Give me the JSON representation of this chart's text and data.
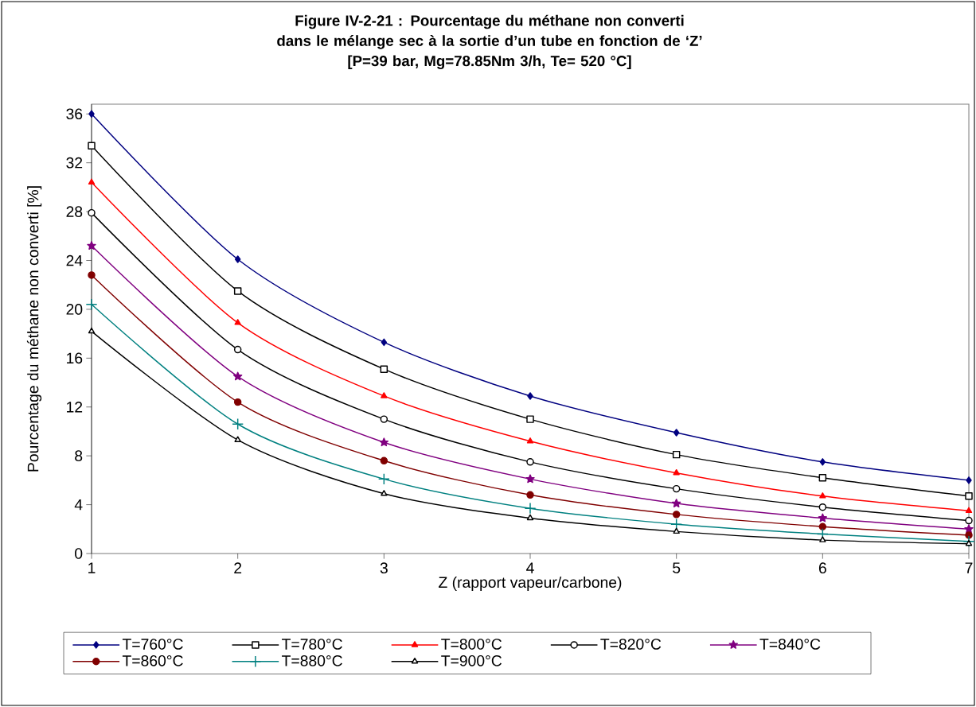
{
  "chart_data": {
    "type": "line",
    "title": "Figure IV-2-21 : Pourcentage du méthane non converti dans le mélange sec à la sortie d’un tube en fonction de ‘Z’",
    "subtitle": "[P=39 bar, Mg=78.85Nm 3/h, Te= 520 °C]",
    "xlabel": "Z (rapport vapeur/carbone)",
    "ylabel": "Pourcentage du méthane non converti [%]",
    "x": [
      1,
      2,
      3,
      4,
      5,
      6,
      7
    ],
    "xlim": [
      1,
      7
    ],
    "xticks": [
      1,
      2,
      3,
      4,
      5,
      6,
      7
    ],
    "ylim": [
      0,
      36.8
    ],
    "yticks": [
      0,
      4,
      8,
      12,
      16,
      20,
      24,
      28,
      32,
      36
    ],
    "grid": false,
    "legend": "bottom",
    "line_style": "solid",
    "series": [
      {
        "name": "T=760°C",
        "color": "#000080",
        "marker": "diamond",
        "values": [
          36.0,
          24.1,
          17.3,
          12.9,
          9.9,
          7.5,
          6.0
        ]
      },
      {
        "name": "T=780°C",
        "color": "#000000",
        "marker": "square",
        "values": [
          33.4,
          21.5,
          15.1,
          11.0,
          8.1,
          6.2,
          4.7
        ]
      },
      {
        "name": "T=800°C",
        "color": "#ff0000",
        "marker": "triangle",
        "values": [
          30.4,
          18.9,
          12.9,
          9.2,
          6.6,
          4.7,
          3.5
        ]
      },
      {
        "name": "T=820°C",
        "color": "#000000",
        "marker": "circle",
        "values": [
          27.9,
          16.7,
          11.0,
          7.5,
          5.3,
          3.8,
          2.7
        ]
      },
      {
        "name": "T=840°C",
        "color": "#800080",
        "marker": "star",
        "values": [
          25.2,
          14.5,
          9.1,
          6.1,
          4.1,
          2.9,
          2.0
        ]
      },
      {
        "name": "T=860°C",
        "color": "#800000",
        "marker": "circle",
        "values": [
          22.8,
          12.4,
          7.6,
          4.8,
          3.2,
          2.2,
          1.5
        ]
      },
      {
        "name": "T=880°C",
        "color": "#008080",
        "marker": "cross",
        "values": [
          20.4,
          10.6,
          6.1,
          3.7,
          2.4,
          1.6,
          1.0
        ]
      },
      {
        "name": "T=900°C",
        "color": "#000000",
        "marker": "triangle",
        "values": [
          18.2,
          9.3,
          4.9,
          2.9,
          1.8,
          1.1,
          0.8
        ]
      }
    ]
  }
}
